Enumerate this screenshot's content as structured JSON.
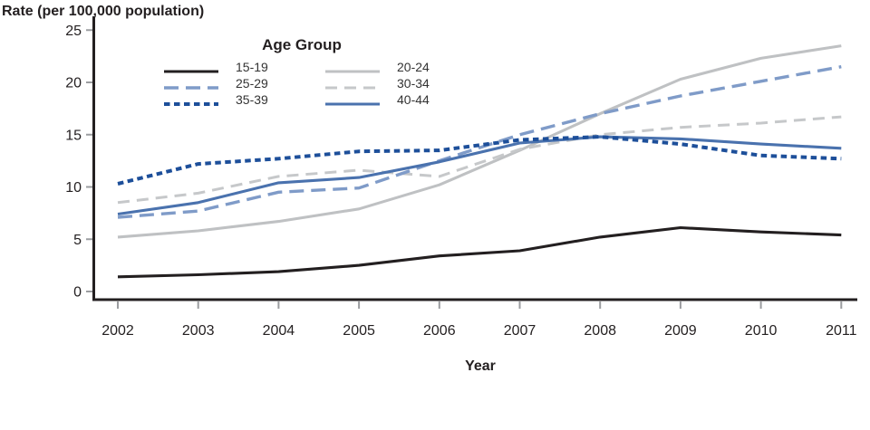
{
  "title": "Rate (per 100,000 population)",
  "legend": {
    "title": "Age Group"
  },
  "x_axis": {
    "label": "Year"
  },
  "colors": {
    "axis": "#231f20",
    "tick": "#9b9da0",
    "text": "#231f20"
  },
  "chart_data": {
    "type": "line",
    "title": "Rate (per 100,000 population)",
    "xlabel": "Year",
    "ylabel": "Rate (per 100,000 population)",
    "x": [
      2002,
      2003,
      2004,
      2005,
      2006,
      2007,
      2008,
      2009,
      2010,
      2011
    ],
    "ylim": [
      0,
      25
    ],
    "y_ticks": [
      0,
      5,
      10,
      15,
      20,
      25
    ],
    "grid": false,
    "legend_position": "top-center, two columns, titled",
    "draw_order": [
      1,
      3,
      2,
      5,
      4,
      0
    ],
    "series": [
      {
        "name": "15-19",
        "color": "#231f20",
        "style": "solid",
        "legend_column": 1,
        "values": [
          1.4,
          1.6,
          1.9,
          2.5,
          3.4,
          3.9,
          5.2,
          6.1,
          5.7,
          5.4
        ]
      },
      {
        "name": "20-24",
        "color": "#bfc1c3",
        "style": "solid",
        "legend_column": 2,
        "values": [
          5.2,
          5.8,
          6.7,
          7.9,
          10.2,
          13.5,
          17.0,
          20.3,
          22.3,
          23.5
        ]
      },
      {
        "name": "25-29",
        "color": "#7f9bc8",
        "style": "long-dash",
        "legend_column": 1,
        "values": [
          7.1,
          7.7,
          9.5,
          9.9,
          12.5,
          15.0,
          17.0,
          18.7,
          20.1,
          21.5
        ]
      },
      {
        "name": "30-34",
        "color": "#c6c8ca",
        "style": "dash",
        "legend_column": 2,
        "values": [
          8.5,
          9.4,
          11.0,
          11.6,
          11.0,
          13.6,
          15.0,
          15.7,
          16.1,
          16.7
        ]
      },
      {
        "name": "35-39",
        "color": "#1d4f9a",
        "style": "dotted",
        "legend_column": 1,
        "values": [
          10.3,
          12.2,
          12.7,
          13.4,
          13.5,
          14.5,
          14.8,
          14.1,
          13.0,
          12.7
        ]
      },
      {
        "name": "40-44",
        "color": "#4a72ae",
        "style": "solid",
        "legend_column": 2,
        "values": [
          7.4,
          8.5,
          10.4,
          10.9,
          12.4,
          14.2,
          14.8,
          14.6,
          14.1,
          13.7
        ]
      }
    ]
  }
}
